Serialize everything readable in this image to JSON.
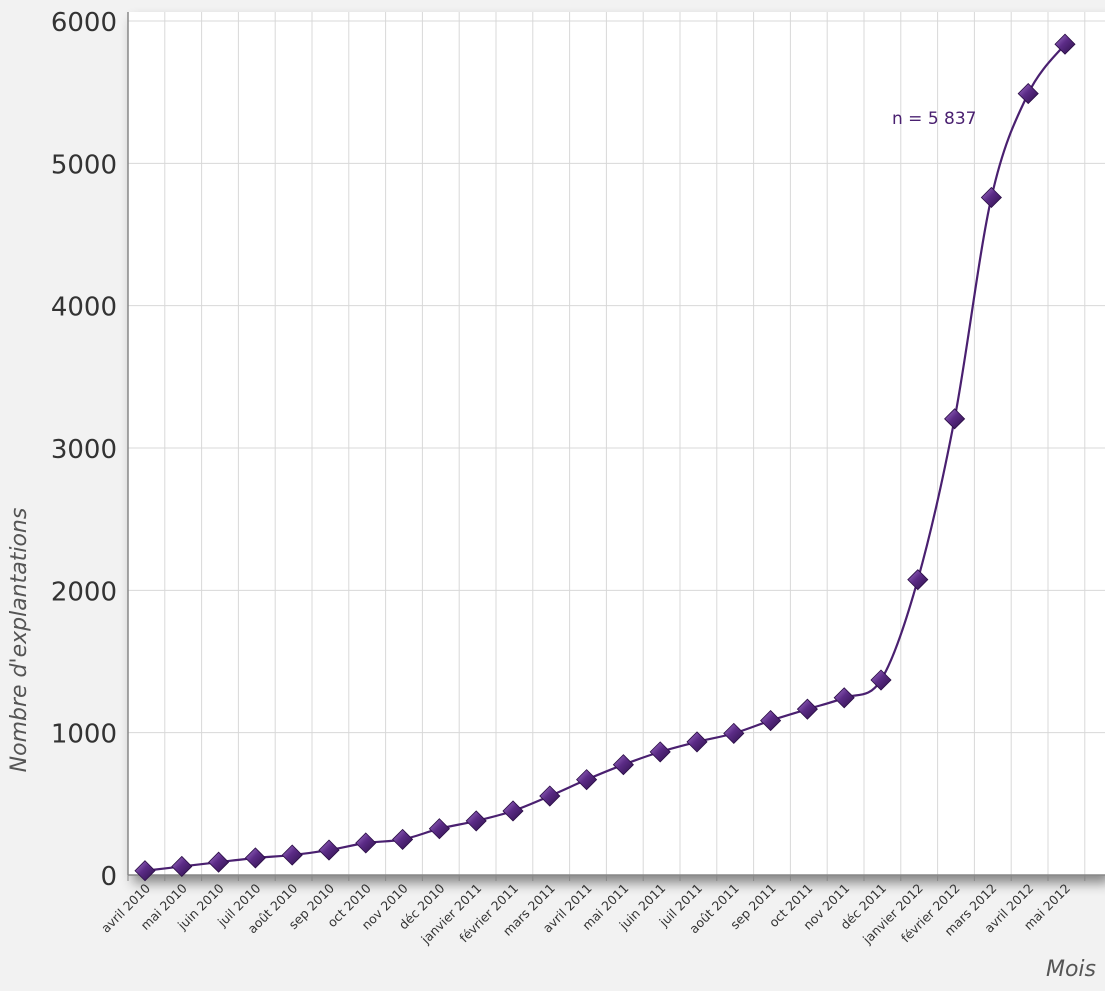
{
  "chart_data": {
    "type": "line",
    "title": "",
    "xlabel": "Mois",
    "ylabel": "Nombre d'explantations",
    "annotation": "n = 5 837",
    "ylim": [
      0,
      6000
    ],
    "yticks": [
      "0",
      "1000",
      "2000",
      "3000",
      "4000",
      "5000",
      "6000"
    ],
    "grid": true,
    "series_color": "#4a2070",
    "categories": [
      "avril 2010",
      "mai 2010",
      "juin 2010",
      "juil 2010",
      "août 2010",
      "sep 2010",
      "oct 2010",
      "nov 2010",
      "déc 2010",
      "janvier 2011",
      "février 2011",
      "mars 2011",
      "avril 2011",
      "mai 2011",
      "juin 2011",
      "juil 2011",
      "août 2011",
      "sep 2011",
      "oct 2011",
      "nov 2011",
      "déc 2011",
      "janvier 2012",
      "février 2012",
      "mars 2012",
      "avril 2012",
      "mai 2012"
    ],
    "values": [
      30,
      60,
      90,
      120,
      140,
      175,
      225,
      250,
      325,
      380,
      450,
      555,
      670,
      775,
      865,
      935,
      995,
      1085,
      1165,
      1245,
      1370,
      2075,
      3205,
      4760,
      5490,
      5837
    ]
  }
}
